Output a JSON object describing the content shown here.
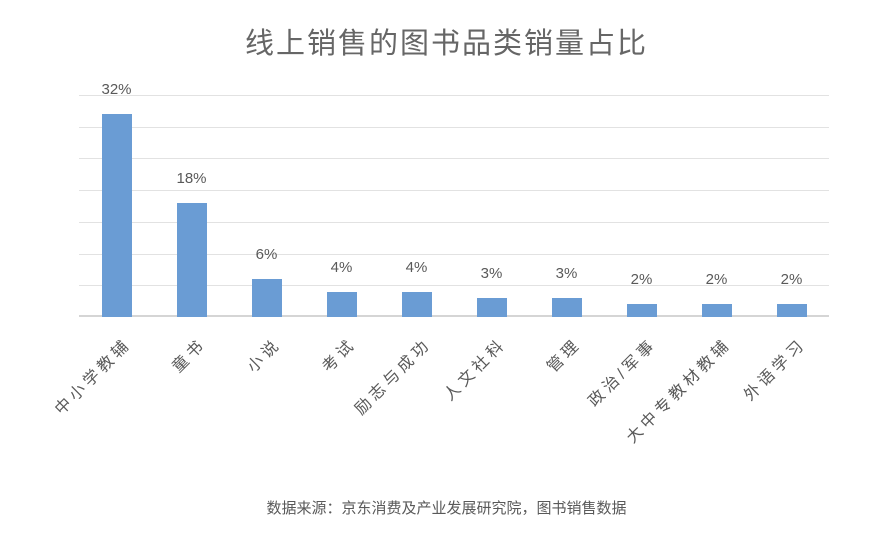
{
  "chart_data": {
    "type": "bar",
    "title": "线上销售的图书品类销量占比",
    "categories": [
      "中小学教辅",
      "童书",
      "小说",
      "考试",
      "励志与成功",
      "人文社科",
      "管理",
      "政治/军事",
      "大中专教材教辅",
      "外语学习"
    ],
    "values": [
      32,
      18,
      6,
      4,
      4,
      3,
      3,
      2,
      2,
      2
    ],
    "value_labels": [
      "32%",
      "18%",
      "6%",
      "4%",
      "4%",
      "3%",
      "3%",
      "2%",
      "2%",
      "2%"
    ],
    "xlabel": "",
    "ylabel": "",
    "ylim": [
      0,
      35
    ],
    "grid_step": 5,
    "grid": true,
    "legend": "none",
    "x_tick_rotation": -45,
    "colors": {
      "bar": "#6A9CD4",
      "grid": "#E2E2E2",
      "axis_line": "#D5D5D5",
      "title_text": "#666666",
      "label_text": "#595959"
    }
  },
  "source_note": {
    "text": "数据来源：京东消费及产业发展研究院，图书销售数据"
  }
}
